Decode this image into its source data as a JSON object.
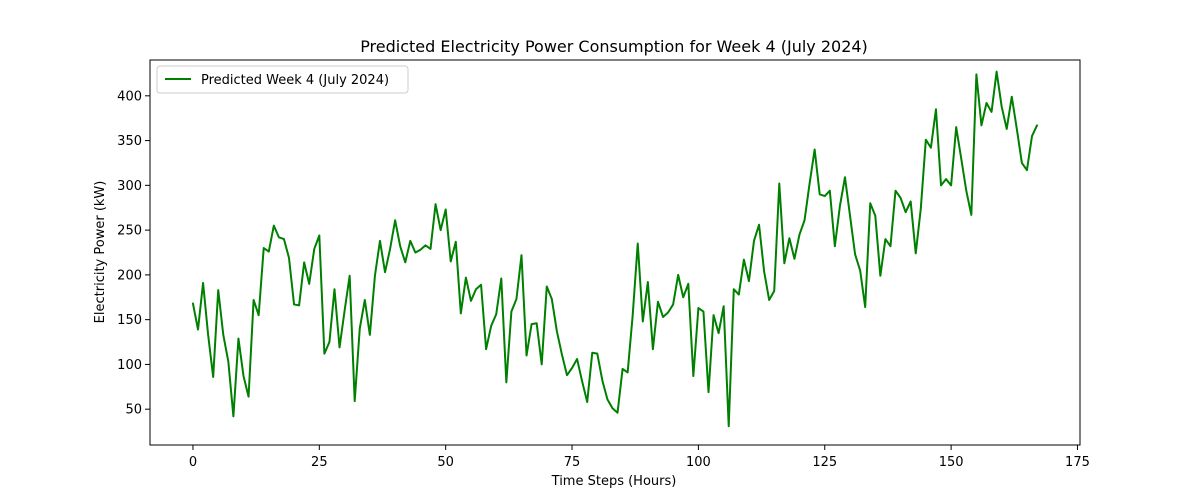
{
  "chart_data": {
    "type": "line",
    "title": "Predicted Electricity Power Consumption for Week 4 (July 2024)",
    "xlabel": "Time Steps (Hours)",
    "ylabel": "Electricity Power (kW)",
    "xlim": [
      -8.5,
      175.5
    ],
    "ylim": [
      10,
      440
    ],
    "xticks": [
      0,
      25,
      50,
      75,
      100,
      125,
      150,
      175
    ],
    "yticks": [
      50,
      100,
      150,
      200,
      250,
      300,
      350,
      400
    ],
    "grid": false,
    "legend_position": "top-left",
    "series": [
      {
        "name": "Predicted Week 4 (July 2024)",
        "color": "#008000",
        "x": [
          0,
          1,
          2,
          3,
          4,
          5,
          6,
          7,
          8,
          9,
          10,
          11,
          12,
          13,
          14,
          15,
          16,
          17,
          18,
          19,
          20,
          21,
          22,
          23,
          24,
          25,
          26,
          27,
          28,
          29,
          30,
          31,
          32,
          33,
          34,
          35,
          36,
          37,
          38,
          39,
          40,
          41,
          42,
          43,
          44,
          45,
          46,
          47,
          48,
          49,
          50,
          51,
          52,
          53,
          54,
          55,
          56,
          57,
          58,
          59,
          60,
          61,
          62,
          63,
          64,
          65,
          66,
          67,
          68,
          69,
          70,
          71,
          72,
          73,
          74,
          75,
          76,
          77,
          78,
          79,
          80,
          81,
          82,
          83,
          84,
          85,
          86,
          87,
          88,
          89,
          90,
          91,
          92,
          93,
          94,
          95,
          96,
          97,
          98,
          99,
          100,
          101,
          102,
          103,
          104,
          105,
          106,
          107,
          108,
          109,
          110,
          111,
          112,
          113,
          114,
          115,
          116,
          117,
          118,
          119,
          120,
          121,
          122,
          123,
          124,
          125,
          126,
          127,
          128,
          129,
          130,
          131,
          132,
          133,
          134,
          135,
          136,
          137,
          138,
          139,
          140,
          141,
          142,
          143,
          144,
          145,
          146,
          147,
          148,
          149,
          150,
          151,
          152,
          153,
          154,
          155,
          156,
          157,
          158,
          159,
          160,
          161,
          162,
          163,
          164,
          165,
          166,
          167
        ],
        "y": [
          168,
          139,
          191,
          133,
          86,
          183,
          133,
          103,
          42,
          129,
          87,
          64,
          172,
          155,
          230,
          226,
          255,
          242,
          240,
          219,
          167,
          166,
          214,
          190,
          229,
          244,
          112,
          125,
          184,
          119,
          160,
          199,
          59,
          140,
          172,
          133,
          199,
          238,
          203,
          229,
          261,
          232,
          214,
          238,
          225,
          228,
          233,
          229,
          279,
          250,
          273,
          215,
          237,
          157,
          197,
          171,
          184,
          189,
          117,
          143,
          156,
          196,
          80,
          159,
          173,
          222,
          110,
          145,
          146,
          100,
          187,
          173,
          137,
          111,
          88,
          96,
          106,
          81,
          58,
          113,
          112,
          82,
          61,
          51,
          46,
          95,
          91,
          155,
          235,
          148,
          192,
          117,
          170,
          153,
          158,
          167,
          200,
          175,
          190,
          87,
          163,
          159,
          69,
          155,
          135,
          165,
          31,
          184,
          178,
          217,
          193,
          238,
          256,
          204,
          172,
          182,
          302,
          213,
          241,
          218,
          245,
          261,
          302,
          340,
          290,
          288,
          294,
          232,
          277,
          309,
          266,
          223,
          205,
          164,
          280,
          266,
          199,
          240,
          232,
          294,
          286,
          270,
          282,
          224,
          274,
          351,
          342,
          385,
          300,
          307,
          300,
          365,
          330,
          294,
          267,
          424,
          367,
          392,
          382,
          427,
          388,
          363,
          399,
          363,
          325,
          317,
          355,
          367
        ]
      }
    ]
  }
}
